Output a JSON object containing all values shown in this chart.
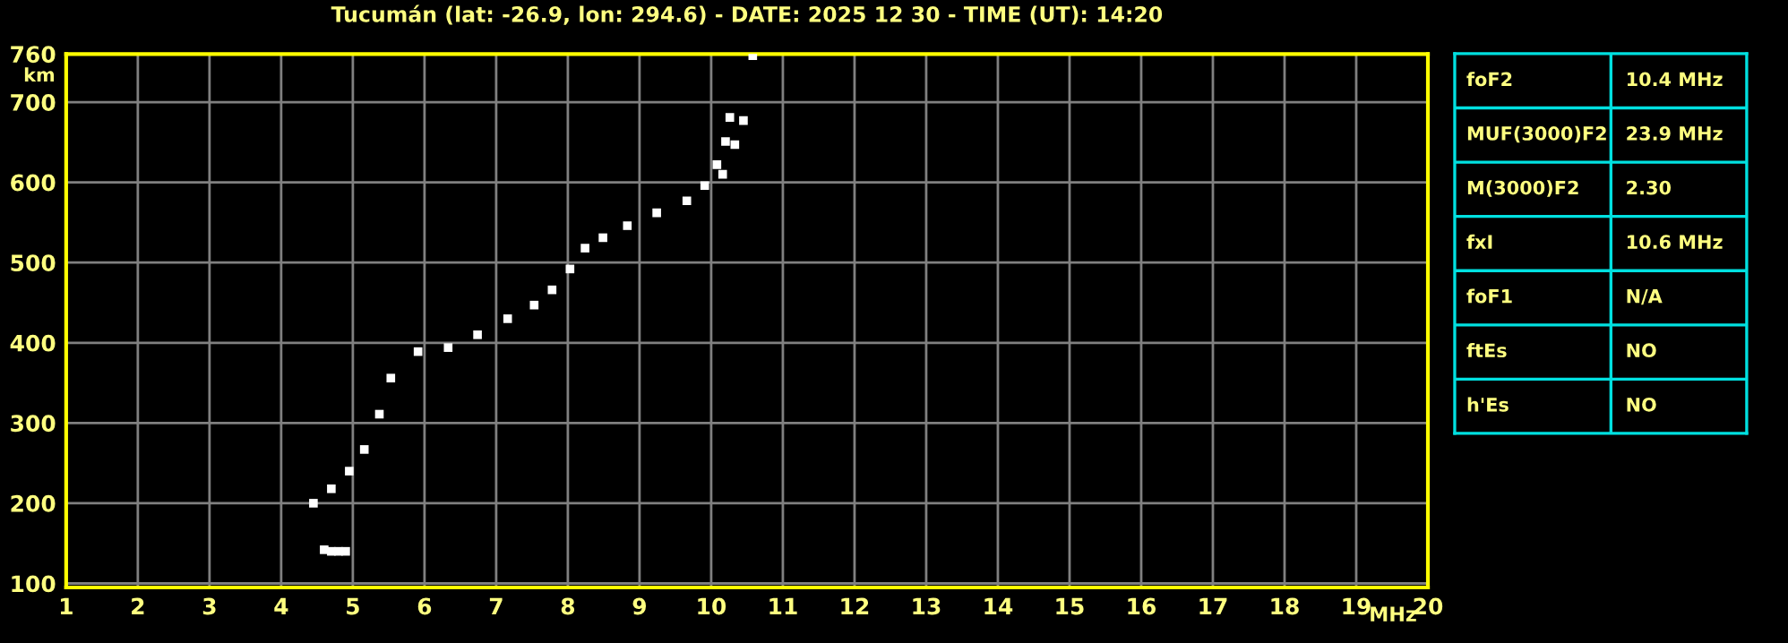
{
  "chart_data": [
    {
      "type": "scatter",
      "title": "Tucumán (lat: -26.9, lon: 294.6) - DATE: 2025 12 30 - TIME (UT): 14:20",
      "xlabel": "MHz",
      "ylabel": "km",
      "series": [
        {
          "color": "#ffffff",
          "x": [
            4.6,
            4.7,
            4.8,
            4.9,
            4.45,
            4.7,
            4.95,
            5.16,
            5.37,
            5.53,
            5.91,
            6.33,
            6.74,
            7.16,
            7.53,
            7.78,
            8.03,
            8.24,
            8.49,
            8.83,
            9.24,
            9.66,
            9.91,
            10.08,
            10.2,
            10.26,
            10.58
          ],
          "values": [
            142,
            140,
            140,
            140,
            200,
            218,
            240,
            267,
            311,
            356,
            389,
            394,
            410,
            430,
            447,
            466,
            492,
            518,
            531,
            546,
            562,
            577,
            596,
            622,
            651,
            681,
            758
          ]
        },
        {
          "color": "#ffffff",
          "x": [
            10.16,
            10.33,
            10.45
          ],
          "values": [
            610,
            647,
            677
          ]
        }
      ],
      "xlim": [
        1,
        20
      ],
      "ylim": [
        95,
        760
      ],
      "xticks": [
        1,
        2,
        3,
        4,
        5,
        6,
        7,
        8,
        9,
        10,
        11,
        12,
        13,
        14,
        15,
        16,
        17,
        18,
        19,
        20
      ],
      "yticks": [
        100,
        200,
        300,
        400,
        500,
        600,
        700,
        760
      ],
      "grid": true,
      "marker": "square",
      "legend": false
    },
    {
      "type": "other",
      "annotations": [
        "foF2",
        "10.4 MHz",
        "MUF(3000)F2",
        "23.9 MHz",
        "M(3000)F2",
        "2.30",
        "fxI",
        "10.6 MHz",
        "foF1",
        "N/A",
        "ftEs",
        "NO",
        "h'Es",
        "NO"
      ]
    }
  ]
}
